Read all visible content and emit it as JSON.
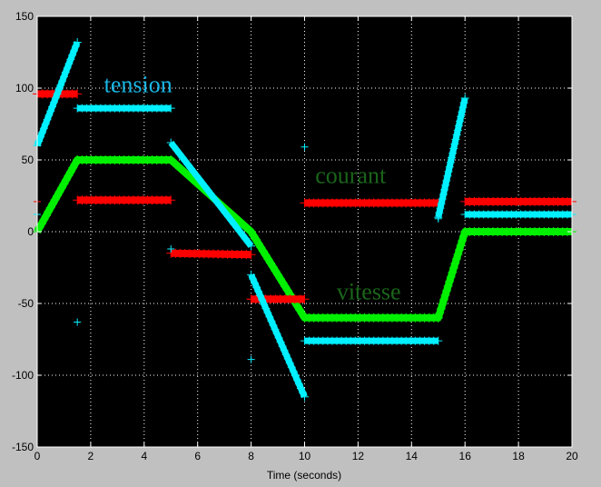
{
  "chart_data": {
    "type": "line",
    "xlabel": "Time (seconds)",
    "ylabel": "",
    "xlim": [
      0,
      20
    ],
    "ylim": [
      -150,
      150
    ],
    "xticks": [
      0,
      2,
      4,
      6,
      8,
      10,
      12,
      14,
      16,
      18,
      20
    ],
    "yticks": [
      -150,
      -100,
      -50,
      0,
      50,
      100,
      150
    ],
    "grid": true,
    "colors": {
      "red": "#ff0000",
      "cyan": "#00f0ff",
      "green": "#00f000",
      "annot_cyan": "#1ab8e6",
      "annot_green": "#1a661a"
    },
    "annotations": [
      {
        "text": "tension",
        "x": 2.5,
        "y": 97,
        "color": "annot_cyan"
      },
      {
        "text": "courant",
        "x": 10.4,
        "y": 34,
        "color": "annot_green"
      },
      {
        "text": "vitesse",
        "x": 11.2,
        "y": -47,
        "color": "annot_green"
      }
    ],
    "series": [
      {
        "color": "green",
        "width": 8,
        "segments": [
          {
            "points": [
              [
                0,
                0
              ],
              [
                1.5,
                50
              ],
              [
                5,
                50
              ],
              [
                8,
                0
              ],
              [
                10,
                -60
              ],
              [
                15,
                -60
              ],
              [
                16,
                0
              ],
              [
                20,
                0
              ]
            ]
          }
        ]
      },
      {
        "color": "red",
        "width": 8,
        "segments": [
          {
            "points": [
              [
                0,
                96
              ],
              [
                1.5,
                96
              ]
            ]
          },
          {
            "points": [
              [
                1.5,
                22
              ],
              [
                5,
                22
              ]
            ]
          },
          {
            "points": [
              [
                5,
                -15
              ],
              [
                8,
                -16
              ]
            ]
          },
          {
            "points": [
              [
                8,
                -47
              ],
              [
                10,
                -47
              ]
            ]
          },
          {
            "points": [
              [
                10,
                20
              ],
              [
                15,
                20
              ]
            ]
          },
          {
            "points": [
              [
                16,
                21
              ],
              [
                20,
                21
              ]
            ]
          }
        ]
      },
      {
        "color": "cyan",
        "width": 7,
        "segments": [
          {
            "points": [
              [
                0,
                60
              ],
              [
                1.5,
                132
              ]
            ]
          },
          {
            "points": [
              [
                1.5,
                86
              ],
              [
                5,
                86
              ]
            ]
          },
          {
            "points": [
              [
                5,
                62
              ],
              [
                8,
                -10
              ]
            ]
          },
          {
            "points": [
              [
                8,
                -30
              ],
              [
                10,
                -115
              ]
            ]
          },
          {
            "points": [
              [
                10,
                -76
              ],
              [
                15,
                -76
              ]
            ]
          },
          {
            "points": [
              [
                15,
                10
              ],
              [
                16,
                93
              ]
            ]
          },
          {
            "points": [
              [
                16,
                12
              ],
              [
                20,
                12
              ]
            ]
          }
        ]
      }
    ],
    "scatter_markers": [
      {
        "color": "cyan",
        "points": [
          [
            1.5,
            -63
          ],
          [
            5,
            -12
          ],
          [
            8,
            -89
          ],
          [
            10,
            59
          ],
          [
            15,
            9
          ],
          [
            0,
            12
          ]
        ]
      },
      {
        "color": "red",
        "points": [
          [
            0,
            21
          ],
          [
            8,
            -47
          ]
        ]
      }
    ]
  }
}
